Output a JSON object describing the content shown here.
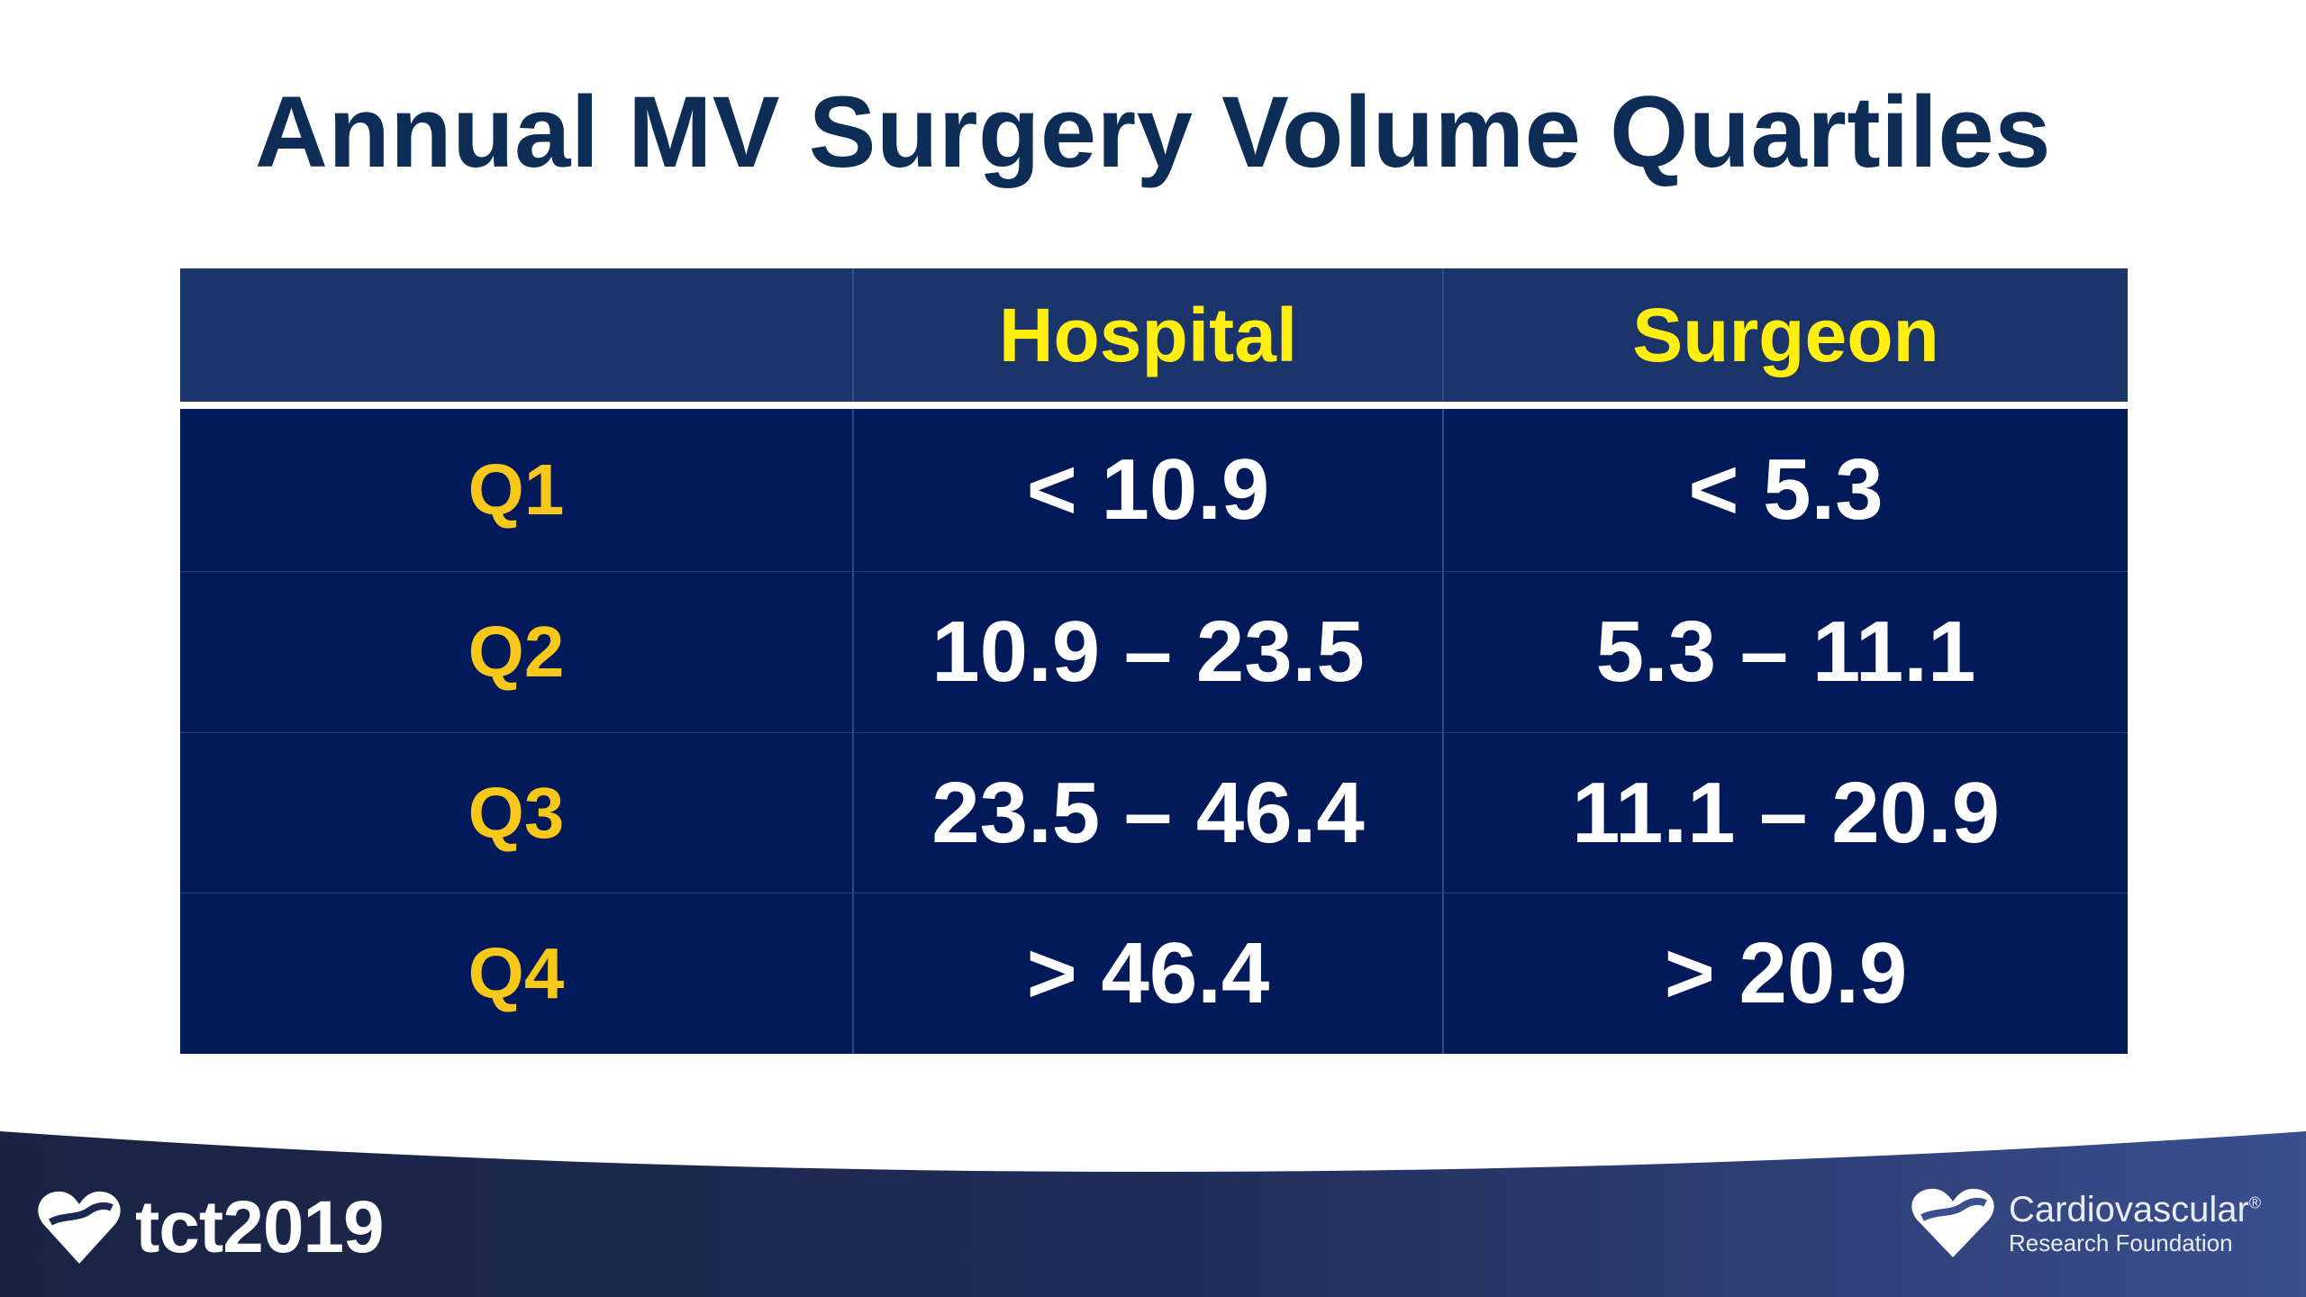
{
  "title": "Annual MV Surgery Volume Quartiles",
  "table": {
    "headers": [
      "",
      "Hospital",
      "Surgeon"
    ],
    "rows": [
      {
        "label": "Q1",
        "hospital": "< 10.9",
        "surgeon": "< 5.3"
      },
      {
        "label": "Q2",
        "hospital": "10.9 – 23.5",
        "surgeon": "5.3 – 11.1"
      },
      {
        "label": "Q3",
        "hospital": "23.5 – 46.4",
        "surgeon": "11.1 – 20.9"
      },
      {
        "label": "Q4",
        "hospital": "> 46.4",
        "surgeon": "> 20.9"
      }
    ]
  },
  "footer": {
    "left_logo_text": "tct2019",
    "right_logo_line1": "Cardiovascular",
    "right_logo_mark": "®",
    "right_logo_line2": "Research Foundation"
  },
  "colors": {
    "title": "#0d2d56",
    "header_bg": "#1b3469",
    "header_text": "#ffee10",
    "body_bg": "#031a5a",
    "quartile_label": "#f7c71a",
    "value_text": "#ffffff",
    "footer_band": "#1c2c55"
  },
  "icons": {
    "left_logo": "heart-logo-icon",
    "right_logo": "heart-logo-icon"
  }
}
